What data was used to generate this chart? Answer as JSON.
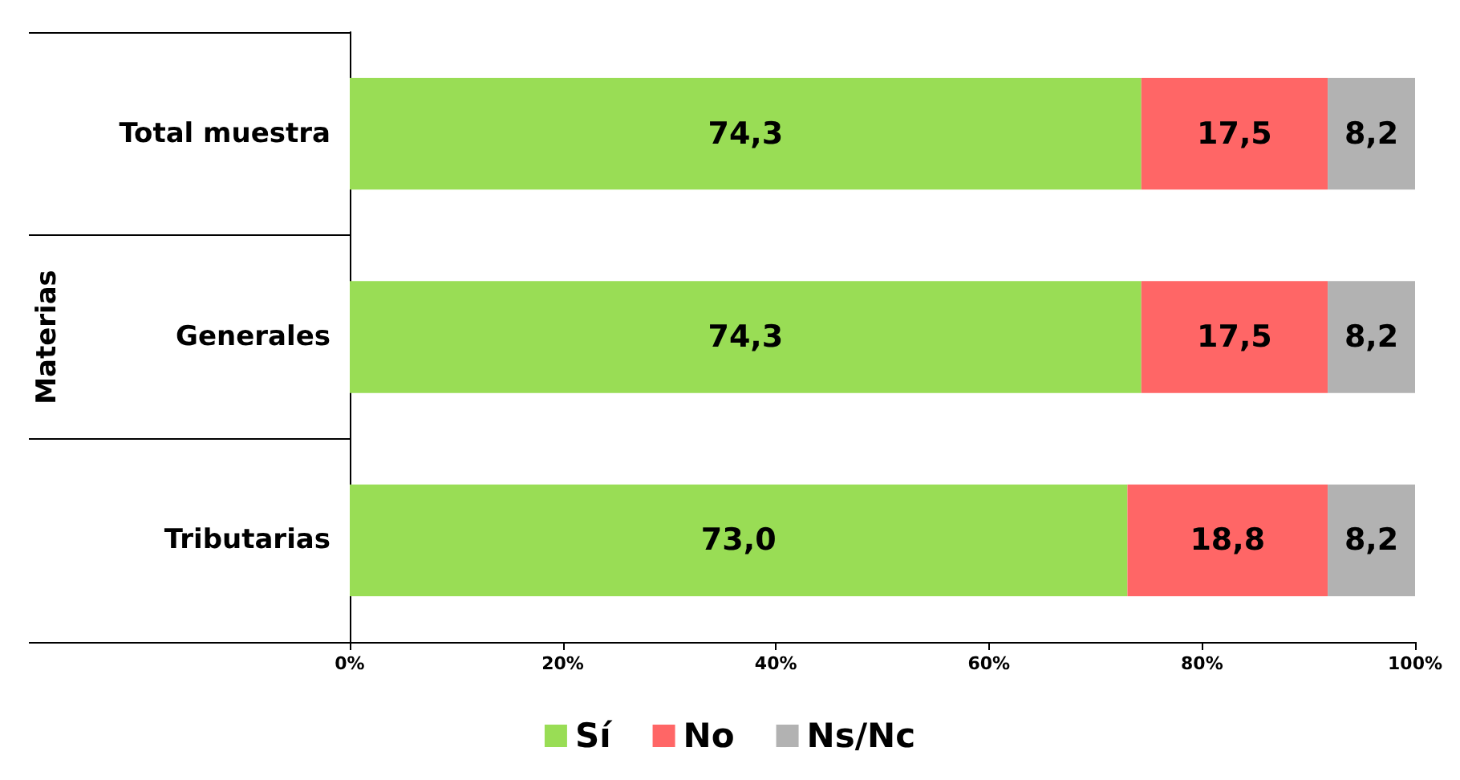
{
  "chart_data": {
    "type": "bar",
    "orientation": "horizontal",
    "stacked": true,
    "ylabel": "Materias",
    "categories": [
      "Total muestra",
      "Generales",
      "Tributarias"
    ],
    "series": [
      {
        "name": "Sí",
        "color": "#99dd55",
        "values": [
          74.3,
          74.3,
          73.0
        ],
        "value_labels": [
          "74,3",
          "74,3",
          "73,0"
        ]
      },
      {
        "name": "No",
        "color": "#ff6666",
        "values": [
          17.5,
          17.5,
          18.8
        ],
        "value_labels": [
          "17,5",
          "17,5",
          "18,8"
        ]
      },
      {
        "name": "Ns/Nc",
        "color": "#b2b2b2",
        "values": [
          8.2,
          8.2,
          8.2
        ],
        "value_labels": [
          "8,2",
          "8,2",
          "8,2"
        ]
      }
    ],
    "xlim": [
      0,
      100
    ],
    "xticks": [
      {
        "value": 0,
        "label": "0%"
      },
      {
        "value": 20,
        "label": "20%"
      },
      {
        "value": 40,
        "label": "40%"
      },
      {
        "value": 60,
        "label": "60%"
      },
      {
        "value": 80,
        "label": "80%"
      },
      {
        "value": 100,
        "label": "100%"
      }
    ],
    "grid": false,
    "legend": "bottom"
  }
}
